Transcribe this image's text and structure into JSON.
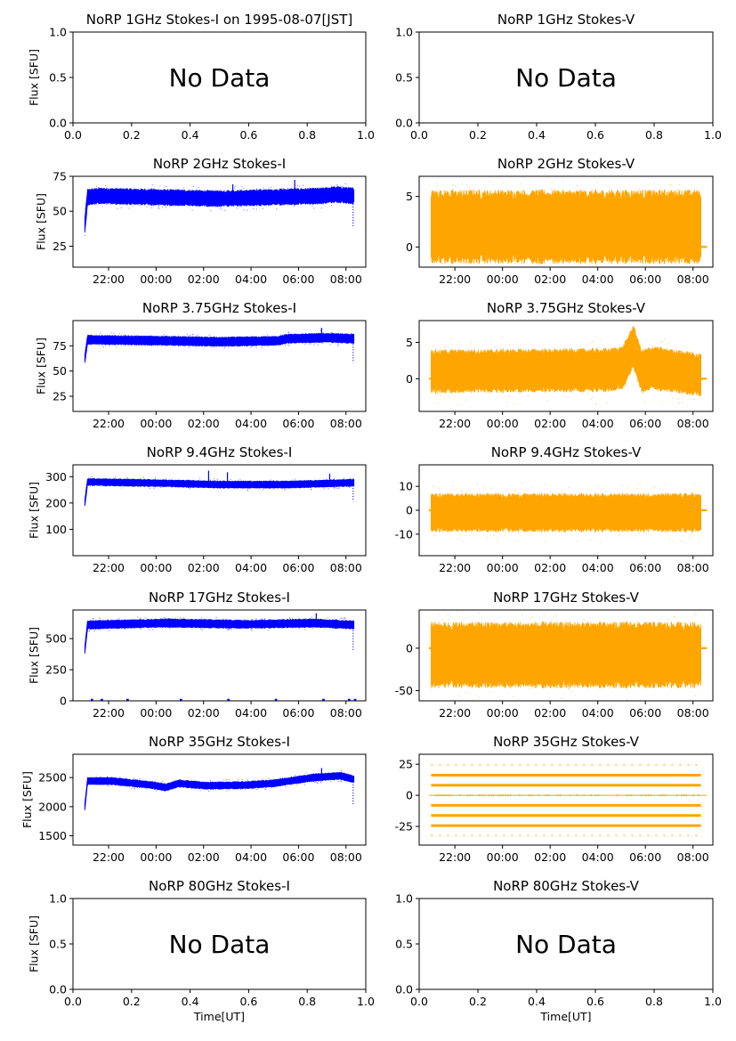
{
  "chart_data": [
    {
      "id": "norp-1ghz-i",
      "type": "scatter",
      "title": "NoRP 1GHz Stokes-I on 1995-08-07[JST]",
      "ylabel": "Flux [SFU]",
      "xlabel": "",
      "no_data": true,
      "message": "No Data",
      "xlim": [
        0,
        1
      ],
      "ylim": [
        0,
        1
      ],
      "xticks": [
        0.0,
        0.2,
        0.4,
        0.6,
        0.8,
        1.0
      ],
      "xtick_labels": [
        "0.0",
        "0.2",
        "0.4",
        "0.6",
        "0.8",
        "1.0"
      ],
      "yticks": [
        0.0,
        0.5,
        1.0
      ],
      "ytick_labels": [
        "0.0",
        "0.5",
        "1.0"
      ]
    },
    {
      "id": "norp-1ghz-v",
      "type": "scatter",
      "title": "NoRP 1GHz Stokes-V",
      "ylabel": "",
      "xlabel": "",
      "no_data": true,
      "message": "No Data",
      "xlim": [
        0,
        1
      ],
      "ylim": [
        0,
        1
      ],
      "xticks": [
        0.0,
        0.2,
        0.4,
        0.6,
        0.8,
        1.0
      ],
      "xtick_labels": [
        "0.0",
        "0.2",
        "0.4",
        "0.6",
        "0.8",
        "1.0"
      ],
      "yticks": [
        0.0,
        0.5,
        1.0
      ],
      "ytick_labels": [
        "0.0",
        "0.5",
        "1.0"
      ]
    },
    {
      "id": "norp-2ghz-i",
      "type": "scatter",
      "title": "NoRP 2GHz Stokes-I",
      "ylabel": "Flux [SFU]",
      "xlabel": "",
      "color": "#0000ff",
      "xlim": [
        "20:30",
        "08:50"
      ],
      "ylim": [
        10,
        75
      ],
      "xticks": [
        "22:00",
        "00:00",
        "02:00",
        "04:00",
        "06:00",
        "08:00"
      ],
      "yticks": [
        25,
        50,
        75
      ],
      "series": [
        {
          "x_start": "21:00",
          "x_end": "08:20",
          "baseline": [
            [
              0,
              40
            ],
            [
              0.01,
              60
            ],
            [
              0.05,
              61
            ],
            [
              0.5,
              59
            ],
            [
              0.88,
              61
            ],
            [
              0.93,
              62
            ],
            [
              1,
              61
            ]
          ],
          "spread": 5,
          "spikes": [
            [
              0.55,
              5
            ],
            [
              0.78,
              7
            ],
            [
              0.997,
              -18
            ]
          ]
        }
      ]
    },
    {
      "id": "norp-2ghz-v",
      "type": "scatter",
      "title": "NoRP 2GHz Stokes-V",
      "ylabel": "",
      "xlabel": "",
      "color": "#ffa500",
      "xlim": [
        "20:30",
        "08:50"
      ],
      "ylim": [
        -2,
        7
      ],
      "xticks": [
        "22:00",
        "00:00",
        "02:00",
        "04:00",
        "06:00",
        "08:00"
      ],
      "yticks": [
        0,
        5
      ],
      "series": [
        {
          "x_start": "21:00",
          "x_end": "08:20",
          "baseline": [
            [
              0,
              2
            ],
            [
              1,
              2
            ]
          ],
          "spread": 3.2,
          "spikes": []
        }
      ],
      "flat_segments": [
        {
          "x_start": "08:20",
          "x_end": "08:35",
          "y": 0
        }
      ]
    },
    {
      "id": "norp-375ghz-i",
      "type": "scatter",
      "title": "NoRP 3.75GHz Stokes-I",
      "ylabel": "Flux [SFU]",
      "xlabel": "",
      "color": "#0000ff",
      "xlim": [
        "20:30",
        "08:50"
      ],
      "ylim": [
        10,
        100
      ],
      "xticks": [
        "22:00",
        "00:00",
        "02:00",
        "04:00",
        "06:00",
        "08:00"
      ],
      "yticks": [
        25,
        50,
        75
      ],
      "series": [
        {
          "x_start": "21:00",
          "x_end": "08:20",
          "baseline": [
            [
              0,
              62
            ],
            [
              0.01,
              81
            ],
            [
              0.3,
              80
            ],
            [
              0.5,
              79
            ],
            [
              0.72,
              80
            ],
            [
              0.75,
              82
            ],
            [
              0.9,
              83
            ],
            [
              1,
              82
            ]
          ],
          "spread": 4,
          "spikes": [
            [
              0.88,
              6
            ],
            [
              0.997,
              -20
            ]
          ]
        }
      ]
    },
    {
      "id": "norp-375ghz-v",
      "type": "scatter",
      "title": "NoRP 3.75GHz Stokes-V",
      "ylabel": "",
      "xlabel": "",
      "color": "#ffa500",
      "xlim": [
        "20:30",
        "08:50"
      ],
      "ylim": [
        -4.5,
        8
      ],
      "xticks": [
        "22:00",
        "00:00",
        "02:00",
        "04:00",
        "06:00",
        "08:00"
      ],
      "yticks": [
        0,
        5
      ],
      "series": [
        {
          "x_start": "21:00",
          "x_end": "08:20",
          "baseline": [
            [
              0,
              1
            ],
            [
              0.66,
              1.2
            ],
            [
              0.71,
              1.5
            ],
            [
              0.75,
              4.5
            ],
            [
              0.78,
              1
            ],
            [
              0.82,
              1.5
            ],
            [
              1,
              0.5
            ]
          ],
          "spread": 2.6,
          "spikes": []
        }
      ],
      "flat_segments": [
        {
          "x_start": "20:55",
          "x_end": "21:00",
          "y": 0
        },
        {
          "x_start": "08:20",
          "x_end": "08:35",
          "y": 0
        }
      ]
    },
    {
      "id": "norp-94ghz-i",
      "type": "scatter",
      "title": "NoRP 9.4GHz Stokes-I",
      "ylabel": "Flux [SFU]",
      "xlabel": "",
      "color": "#0000ff",
      "xlim": [
        "20:30",
        "08:50"
      ],
      "ylim": [
        0,
        345
      ],
      "xticks": [
        "22:00",
        "00:00",
        "02:00",
        "04:00",
        "06:00",
        "08:00"
      ],
      "yticks": [
        100,
        200,
        300
      ],
      "series": [
        {
          "x_start": "21:00",
          "x_end": "08:20",
          "baseline": [
            [
              0,
              200
            ],
            [
              0.01,
              280
            ],
            [
              0.3,
              275
            ],
            [
              0.5,
              270
            ],
            [
              0.75,
              270
            ],
            [
              1,
              277
            ]
          ],
          "spread": 12,
          "spikes": [
            [
              0.46,
              40
            ],
            [
              0.53,
              35
            ],
            [
              0.91,
              25
            ],
            [
              0.997,
              -60
            ]
          ]
        }
      ]
    },
    {
      "id": "norp-94ghz-v",
      "type": "scatter",
      "title": "NoRP 9.4GHz Stokes-V",
      "ylabel": "",
      "xlabel": "",
      "color": "#ffa500",
      "xlim": [
        "20:30",
        "08:50"
      ],
      "ylim": [
        -19,
        19
      ],
      "xticks": [
        "22:00",
        "00:00",
        "02:00",
        "04:00",
        "06:00",
        "08:00"
      ],
      "yticks": [
        -10,
        0,
        10
      ],
      "series": [
        {
          "x_start": "21:00",
          "x_end": "08:20",
          "baseline": [
            [
              0,
              -1
            ],
            [
              1,
              -1
            ]
          ],
          "spread": 7,
          "spikes": []
        }
      ],
      "flat_segments": [
        {
          "x_start": "20:55",
          "x_end": "21:00",
          "y": 0
        },
        {
          "x_start": "08:20",
          "x_end": "08:35",
          "y": 0
        }
      ]
    },
    {
      "id": "norp-17ghz-i",
      "type": "scatter",
      "title": "NoRP 17GHz Stokes-I",
      "ylabel": "Flux [SFU]",
      "xlabel": "",
      "color": "#0000ff",
      "xlim": [
        "20:30",
        "08:50"
      ],
      "ylim": [
        0,
        730
      ],
      "xticks": [
        "22:00",
        "00:00",
        "02:00",
        "04:00",
        "06:00",
        "08:00"
      ],
      "yticks": [
        0,
        250,
        500
      ],
      "series": [
        {
          "x_start": "21:00",
          "x_end": "08:20",
          "baseline": [
            [
              0,
              410
            ],
            [
              0.01,
              610
            ],
            [
              0.3,
              625
            ],
            [
              0.6,
              615
            ],
            [
              0.85,
              625
            ],
            [
              1,
              610
            ]
          ],
          "spread": 30,
          "spikes": [
            [
              0.86,
              50
            ],
            [
              0.997,
              -180
            ]
          ]
        }
      ],
      "zero_ticks": [
        "21:15",
        "21:40",
        "22:45",
        "01:00",
        "03:00",
        "05:00",
        "07:00",
        "08:05",
        "08:20"
      ]
    },
    {
      "id": "norp-17ghz-v",
      "type": "scatter",
      "title": "NoRP 17GHz Stokes-V",
      "ylabel": "",
      "xlabel": "",
      "color": "#ffa500",
      "xlim": [
        "20:30",
        "08:50"
      ],
      "ylim": [
        -62,
        45
      ],
      "xticks": [
        "22:00",
        "00:00",
        "02:00",
        "04:00",
        "06:00",
        "08:00"
      ],
      "yticks": [
        -50,
        0
      ],
      "series": [
        {
          "x_start": "21:00",
          "x_end": "08:20",
          "baseline": [
            [
              0,
              -8
            ],
            [
              1,
              -8
            ]
          ],
          "spread": 34,
          "spikes": []
        }
      ],
      "flat_segments": [
        {
          "x_start": "20:55",
          "x_end": "21:00",
          "y": 0
        },
        {
          "x_start": "08:20",
          "x_end": "08:35",
          "y": 0
        }
      ]
    },
    {
      "id": "norp-35ghz-i",
      "type": "scatter",
      "title": "NoRP 35GHz Stokes-I",
      "ylabel": "Flux [SFU]",
      "xlabel": "",
      "color": "#0000ff",
      "xlim": [
        "20:30",
        "08:50"
      ],
      "ylim": [
        1340,
        2900
      ],
      "xticks": [
        "22:00",
        "00:00",
        "02:00",
        "04:00",
        "06:00",
        "08:00"
      ],
      "yticks": [
        1500,
        2000,
        2500
      ],
      "series": [
        {
          "x_start": "21:00",
          "x_end": "08:20",
          "baseline": [
            [
              0,
              2000
            ],
            [
              0.01,
              2440
            ],
            [
              0.1,
              2440
            ],
            [
              0.25,
              2370
            ],
            [
              0.3,
              2330
            ],
            [
              0.35,
              2400
            ],
            [
              0.45,
              2360
            ],
            [
              0.6,
              2370
            ],
            [
              0.7,
              2400
            ],
            [
              0.85,
              2500
            ],
            [
              0.95,
              2530
            ],
            [
              1,
              2470
            ]
          ],
          "spread": 55,
          "spikes": [
            [
              0.88,
              100
            ],
            [
              0.997,
              -400
            ]
          ]
        }
      ]
    },
    {
      "id": "norp-35ghz-v",
      "type": "scatter",
      "title": "NoRP 35GHz Stokes-V",
      "ylabel": "",
      "xlabel": "",
      "color": "#ffa500",
      "xlim": [
        "20:30",
        "08:50"
      ],
      "ylim": [
        -40,
        33
      ],
      "xticks": [
        "22:00",
        "00:00",
        "02:00",
        "04:00",
        "06:00",
        "08:00"
      ],
      "yticks": [
        -25,
        0,
        25
      ],
      "levels": [
        24.5,
        16.2,
        8.1,
        0,
        -8.1,
        -16.2,
        -24.3,
        -32.4
      ],
      "dense_levels": [
        16.2,
        8.1,
        -8.1,
        -16.2,
        -24.3
      ],
      "sparse_levels": [
        24.5,
        -32.4
      ],
      "x_start": "21:00",
      "x_end": "08:20",
      "flat_segments": [
        {
          "x_start": "20:55",
          "x_end": "08:35",
          "y": 0
        }
      ]
    },
    {
      "id": "norp-80ghz-i",
      "type": "scatter",
      "title": "NoRP 80GHz Stokes-I",
      "ylabel": "Flux [SFU]",
      "xlabel": "Time[UT]",
      "no_data": true,
      "message": "No Data",
      "xlim": [
        0,
        1
      ],
      "ylim": [
        0,
        1
      ],
      "xticks": [
        0.0,
        0.2,
        0.4,
        0.6,
        0.8,
        1.0
      ],
      "xtick_labels": [
        "0.0",
        "0.2",
        "0.4",
        "0.6",
        "0.8",
        "1.0"
      ],
      "yticks": [
        0.0,
        0.5,
        1.0
      ],
      "ytick_labels": [
        "0.0",
        "0.5",
        "1.0"
      ]
    },
    {
      "id": "norp-80ghz-v",
      "type": "scatter",
      "title": "NoRP 80GHz Stokes-V",
      "ylabel": "",
      "xlabel": "Time[UT]",
      "no_data": true,
      "message": "No Data",
      "xlim": [
        0,
        1
      ],
      "ylim": [
        0,
        1
      ],
      "xticks": [
        0.0,
        0.2,
        0.4,
        0.6,
        0.8,
        1.0
      ],
      "xtick_labels": [
        "0.0",
        "0.2",
        "0.4",
        "0.6",
        "0.8",
        "1.0"
      ],
      "yticks": [
        0.0,
        0.5,
        1.0
      ],
      "ytick_labels": [
        "0.0",
        "0.5",
        "1.0"
      ]
    }
  ]
}
